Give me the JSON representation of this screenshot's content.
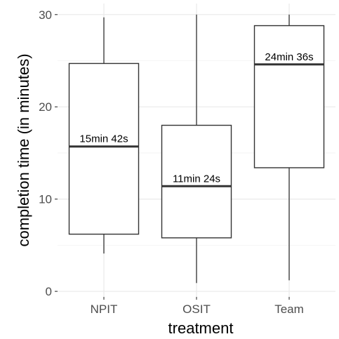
{
  "chart_data": {
    "type": "boxplot",
    "title": "",
    "xlabel": "treatment",
    "ylabel": "completion time (in minutes)",
    "ylim": [
      -0.6,
      31.2
    ],
    "yticks": [
      0,
      10,
      20,
      30
    ],
    "grid": true,
    "categories": [
      "NPIT",
      "OSIT",
      "Team"
    ],
    "boxes": [
      {
        "category": "NPIT",
        "min": 4.1,
        "q1": 6.2,
        "median": 15.7,
        "q3": 24.7,
        "max": 29.7,
        "median_label": "15min 42s"
      },
      {
        "category": "OSIT",
        "min": 0.9,
        "q1": 5.8,
        "median": 11.4,
        "q3": 18.0,
        "max": 30.0,
        "median_label": "11min 24s"
      },
      {
        "category": "Team",
        "min": 1.2,
        "q1": 13.4,
        "median": 24.6,
        "q3": 28.8,
        "max": 30.0,
        "median_label": "24min 36s"
      }
    ]
  }
}
